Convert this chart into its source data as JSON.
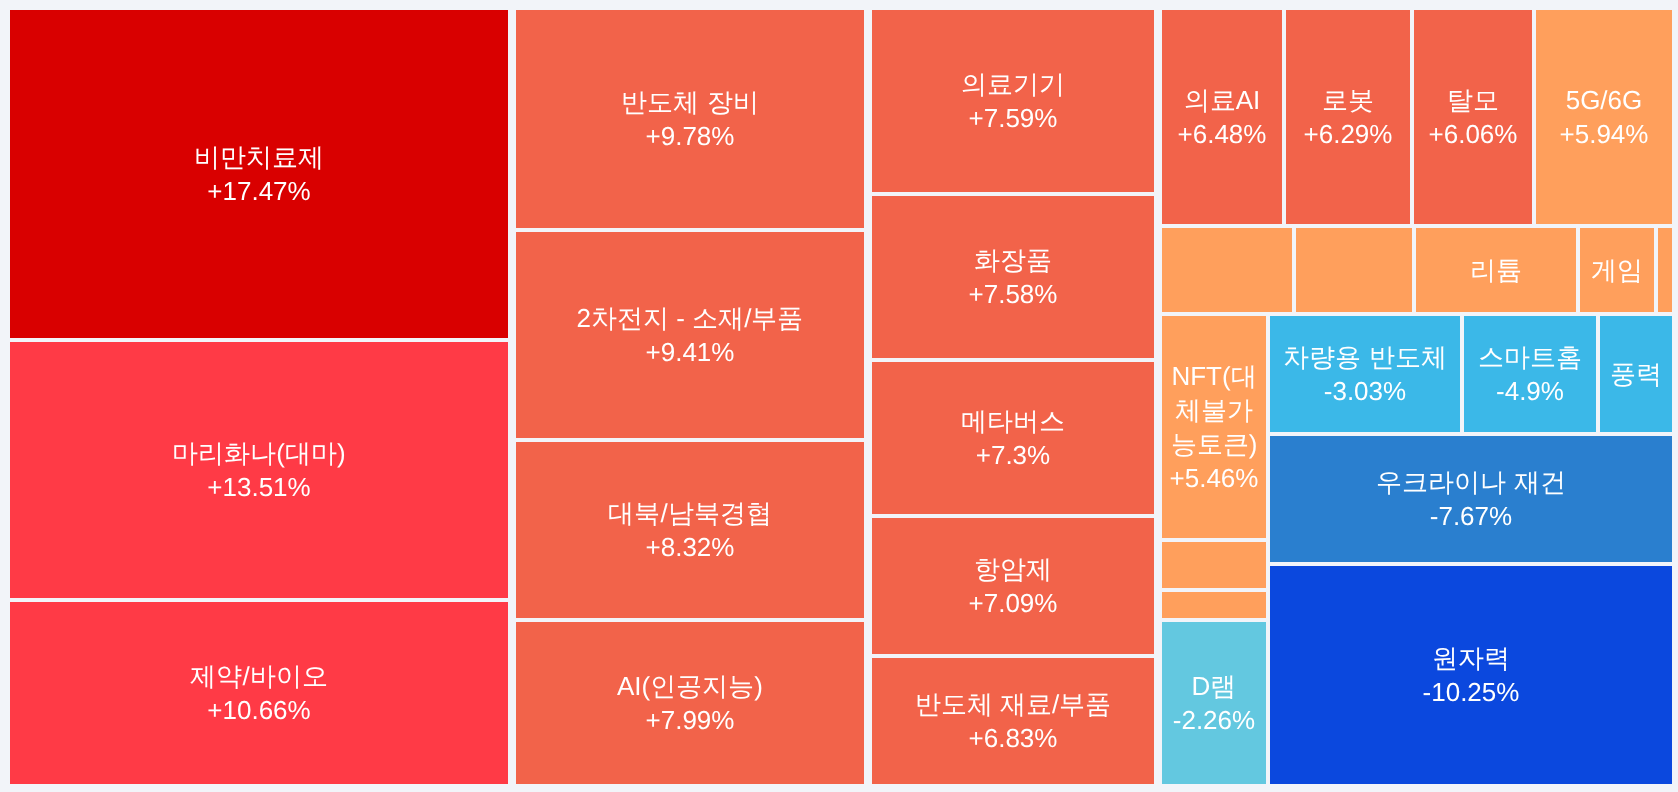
{
  "chart_data": {
    "type": "other",
    "categories": [
      "비만치료제",
      "마리화나(대마)",
      "제약/바이오",
      "반도체 장비",
      "2차전지 - 소재/부품",
      "대북/남북경협",
      "AI(인공지능)",
      "의료기기",
      "화장품",
      "메타버스",
      "항암제",
      "반도체 재료/부품",
      "의료AI",
      "로봇",
      "탈모",
      "5G/6G",
      null,
      null,
      "리튬",
      "게임",
      null,
      "NFT(대체불가능토큰)",
      null,
      null,
      "D램",
      "차량용 반도체",
      "스마트홈",
      "풍력",
      "우크라이나 재건",
      "원자력"
    ],
    "values": [
      17.47,
      13.51,
      10.66,
      9.78,
      9.41,
      8.32,
      7.99,
      7.59,
      7.58,
      7.3,
      7.09,
      6.83,
      6.48,
      6.29,
      6.06,
      5.94,
      null,
      null,
      null,
      null,
      null,
      5.46,
      null,
      null,
      -2.26,
      -3.03,
      -4.9,
      null,
      -7.67,
      -10.25
    ],
    "value_labels": [
      "+17.47%",
      "+13.51%",
      "+10.66%",
      "+9.78%",
      "+9.41%",
      "+8.32%",
      "+7.99%",
      "+7.59%",
      "+7.58%",
      "+7.3%",
      "+7.09%",
      "+6.83%",
      "+6.48%",
      "+6.29%",
      "+6.06%",
      "+5.94%",
      null,
      null,
      null,
      null,
      null,
      "+5.46%",
      null,
      null,
      "-2.26%",
      "-3.03%",
      "-4.9%",
      null,
      "-7.67%",
      "-10.25%"
    ],
    "colors": [
      "#d90000",
      "#ff3a46",
      "#ff3a46",
      "#f2634a",
      "#f2634a",
      "#f2634a",
      "#f2634a",
      "#f2634a",
      "#f2634a",
      "#f2634a",
      "#f2634a",
      "#f2634a",
      "#f2634a",
      "#f2634a",
      "#f2634a",
      "#ff9f5c",
      "#ff9f5c",
      "#ff9f5c",
      "#ff9f5c",
      "#ff9f5c",
      "#ff9f5c",
      "#ff9f5c",
      "#ff9f5c",
      "#ff9f5c",
      "#63c8e0",
      "#3bb8e8",
      "#3bb8e8",
      "#3bb8e8",
      "#2a7fcf",
      "#0b48de"
    ]
  }
}
